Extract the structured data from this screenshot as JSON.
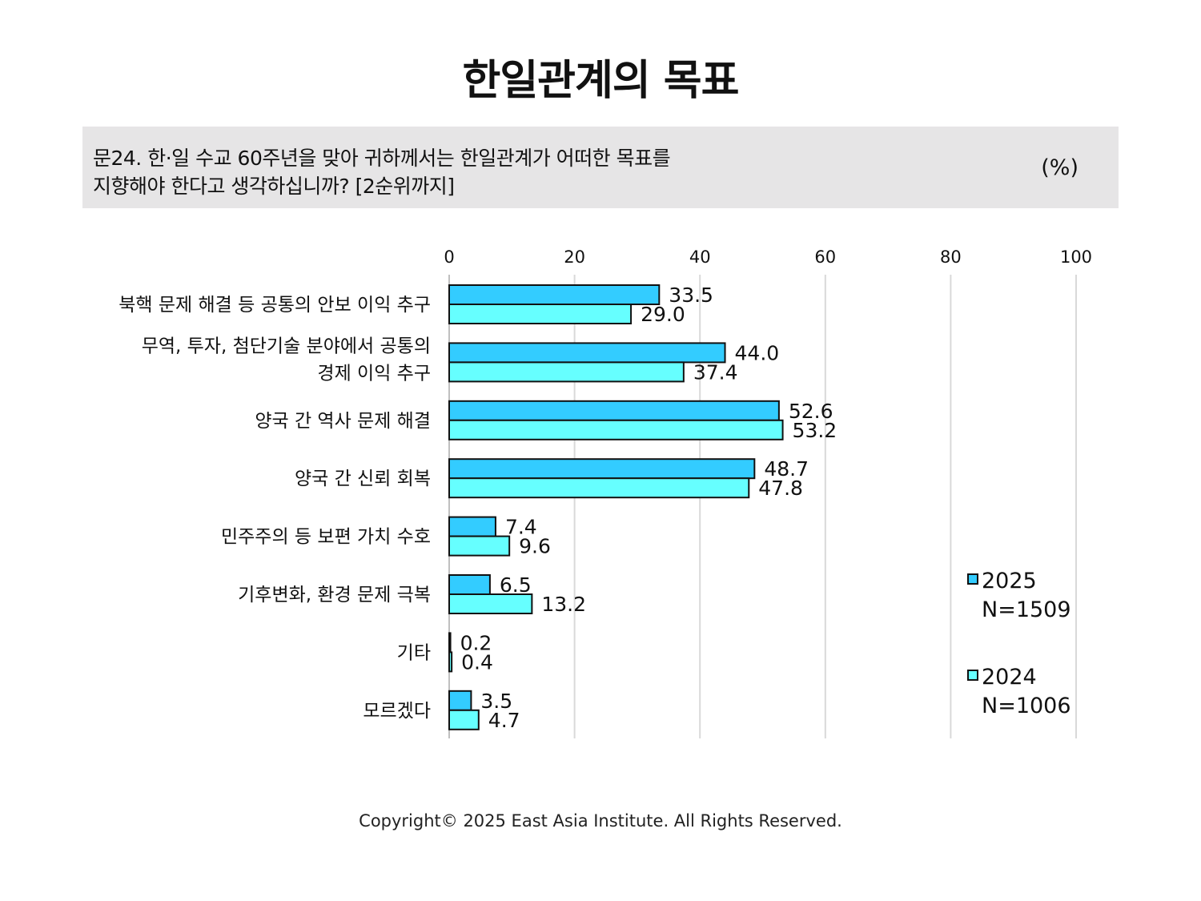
{
  "title": "한일관계의 목표",
  "question": {
    "line1": "문24. 한·일 수교 60주년을 맞아 귀하께서는 한일관계가 어떠한 목표를",
    "line2": "지향해야 한다고 생각하십니까? [2순위까지]",
    "unit": "(%)"
  },
  "footer": "Copyright© 2025 East Asia Institute. All Rights Reserved.",
  "legend": [
    {
      "year": "2025",
      "n": "N=1509",
      "color": "#33ccff"
    },
    {
      "year": "2024",
      "n": "N=1006",
      "color": "#66ffff"
    }
  ],
  "chart_data": {
    "type": "bar",
    "orientation": "horizontal",
    "categories": [
      [
        "북핵 문제 해결 등 공통의 안보 이익 추구"
      ],
      [
        "무역, 투자, 첨단기술 분야에서 공통의",
        "경제 이익 추구"
      ],
      [
        "양국 간 역사 문제 해결"
      ],
      [
        "양국 간 신뢰 회복"
      ],
      [
        "민주주의 등 보편 가치 수호"
      ],
      [
        "기후변화, 환경 문제 극복"
      ],
      [
        "기타"
      ],
      [
        "모르겠다"
      ]
    ],
    "series": [
      {
        "name": "2025",
        "values": [
          33.5,
          44.0,
          52.6,
          48.7,
          7.4,
          6.5,
          0.2,
          3.5
        ],
        "color": "#33ccff"
      },
      {
        "name": "2024",
        "values": [
          29.0,
          37.4,
          53.2,
          47.8,
          9.6,
          13.2,
          0.4,
          4.7
        ],
        "color": "#66ffff"
      }
    ],
    "xlim": [
      0,
      100
    ],
    "xticks": [
      "0",
      "20",
      "40",
      "60",
      "80",
      "100"
    ],
    "grid": true,
    "legend_position": "bottom-right"
  }
}
